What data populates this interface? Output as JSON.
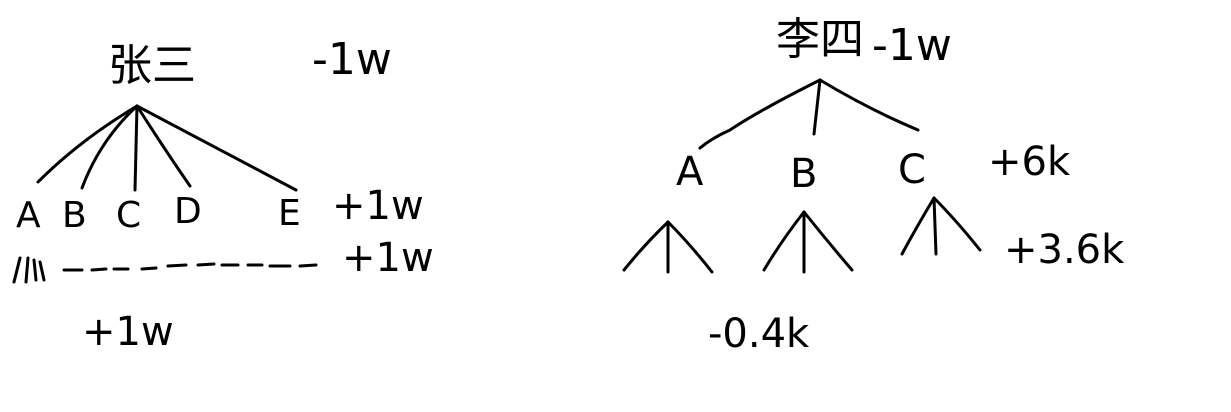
{
  "left_tree": {
    "root": {
      "name": "张三",
      "value": "-1w"
    },
    "children": [
      "A",
      "B",
      "C",
      "D",
      "E"
    ],
    "children_value": "+1w",
    "grandchildren_value": "+1w",
    "total": "+1w"
  },
  "right_tree": {
    "root": {
      "name": "李四",
      "value": "-1w"
    },
    "children": [
      "A",
      "B",
      "C"
    ],
    "children_value": "+6k",
    "grandchildren_value": "+3.6k",
    "total": "-0.4k"
  },
  "colors": {
    "ink": "#000000",
    "background": "#ffffff"
  }
}
